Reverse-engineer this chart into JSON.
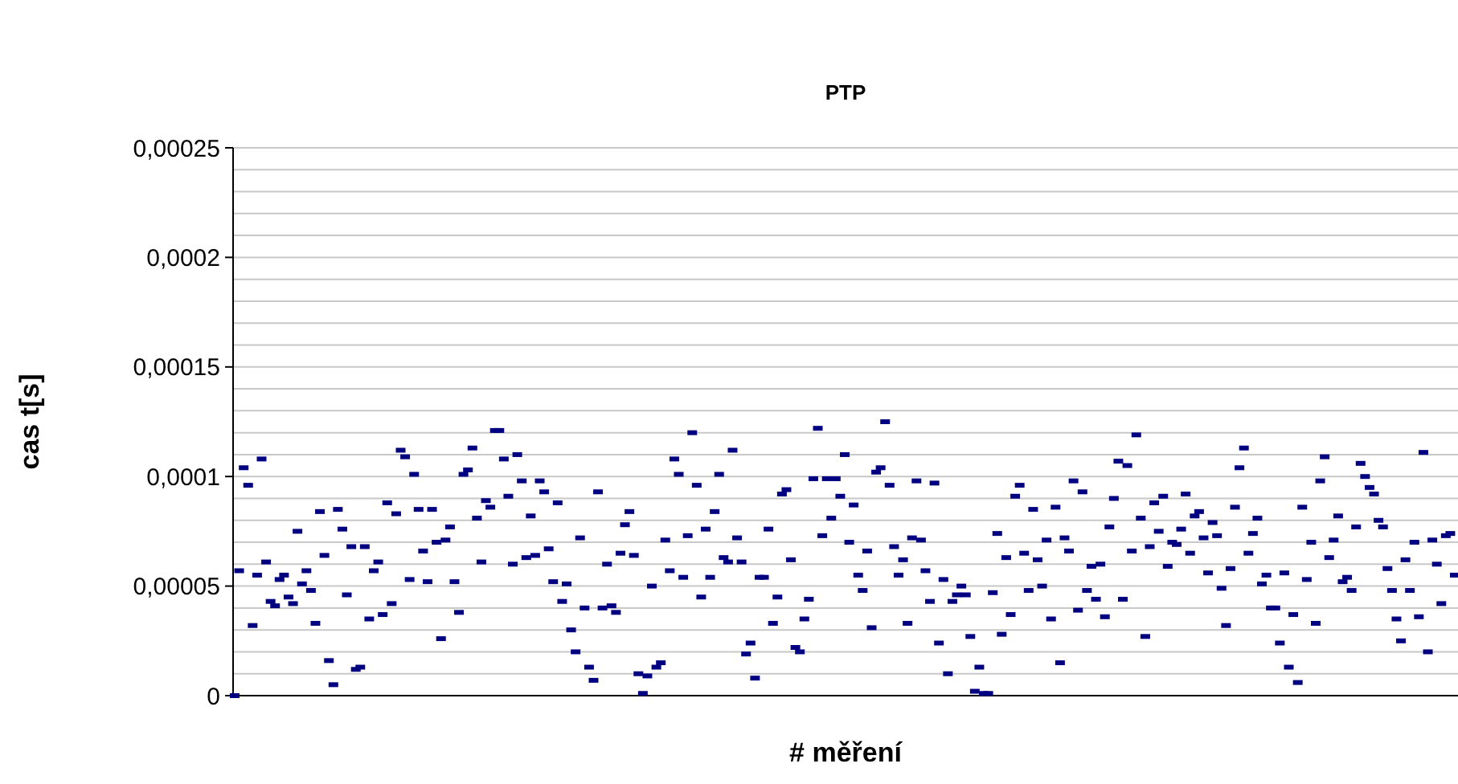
{
  "chart_data": {
    "type": "scatter",
    "title": "PTP",
    "xlabel": "# měření",
    "ylabel": "cas t[s]",
    "categories": [
      null,
      null,
      null,
      null,
      null,
      null,
      null,
      null,
      null,
      null,
      null,
      null,
      null,
      null,
      null,
      null,
      null,
      null,
      null,
      null,
      null,
      null,
      null,
      null,
      null,
      null,
      null,
      null,
      null,
      null,
      null,
      null,
      null,
      null,
      null,
      null,
      null,
      null,
      null,
      null,
      null,
      null,
      null,
      null,
      null,
      null,
      null,
      null,
      null,
      null,
      null,
      null,
      null,
      null,
      null,
      null,
      null,
      null,
      null,
      null,
      null,
      null,
      null,
      null,
      null,
      null,
      null,
      null,
      null,
      null,
      null,
      null,
      null,
      null,
      null,
      null,
      null,
      null,
      null,
      null,
      null,
      null,
      null,
      null,
      null,
      null,
      null,
      null,
      null,
      null,
      null,
      null,
      null,
      null,
      null,
      null,
      null,
      null,
      null,
      null,
      null,
      null,
      null,
      null,
      null,
      null,
      null,
      null,
      null,
      null,
      null,
      null,
      null,
      null,
      null,
      null,
      null,
      null,
      null,
      null,
      null,
      null,
      null,
      null,
      null,
      null,
      null,
      null,
      null,
      null,
      null,
      null,
      null,
      null,
      null,
      null,
      null,
      null,
      null,
      null,
      null,
      null,
      null,
      null,
      null,
      null,
      null,
      null,
      null,
      null,
      null,
      null,
      null,
      null,
      null,
      null,
      null,
      null,
      null,
      null,
      null,
      null,
      null,
      null,
      null,
      null,
      null,
      null,
      null,
      null,
      null,
      null,
      null,
      null,
      null,
      null,
      null,
      null,
      null,
      null,
      null,
      null,
      null,
      null,
      null,
      null,
      null,
      null,
      null,
      null,
      null,
      null,
      null,
      null,
      null,
      null,
      null,
      null,
      null,
      null,
      null,
      null,
      null,
      null,
      null,
      null,
      null,
      null,
      null,
      null,
      null,
      null,
      null,
      null,
      null,
      null,
      null,
      null,
      null,
      null,
      null,
      null,
      null,
      null,
      null,
      null,
      null,
      null,
      null,
      null,
      null,
      null,
      null,
      null,
      null,
      null,
      null,
      null,
      null,
      null,
      null,
      null,
      null,
      null,
      null,
      null,
      null,
      null,
      null,
      null,
      null,
      null,
      null,
      null,
      null,
      null,
      null,
      null,
      null,
      null,
      null,
      null,
      null,
      null,
      null,
      null,
      null,
      null,
      null,
      null,
      null,
      null,
      null
    ],
    "series": [
      {
        "color": "#000080",
        "values": [
          0,
          5.7e-05,
          0.000104,
          9.6e-05,
          3.2e-05,
          5.5e-05,
          0.000108,
          6.1e-05,
          4.3e-05,
          4.1e-05,
          5.3e-05,
          5.5e-05,
          4.5e-05,
          4.2e-05,
          7.5e-05,
          5.1e-05,
          5.7e-05,
          4.8e-05,
          3.3e-05,
          8.4e-05,
          6.4e-05,
          1.6e-05,
          5e-06,
          8.5e-05,
          7.6e-05,
          4.6e-05,
          6.8e-05,
          1.2e-05,
          1.3e-05,
          6.8e-05,
          3.5e-05,
          5.7e-05,
          6.1e-05,
          3.7e-05,
          8.8e-05,
          4.2e-05,
          8.3e-05,
          0.000112,
          0.000109,
          5.3e-05,
          0.000101,
          8.5e-05,
          6.6e-05,
          5.2e-05,
          8.5e-05,
          7e-05,
          2.6e-05,
          7.1e-05,
          7.7e-05,
          5.2e-05,
          3.8e-05,
          0.000101,
          0.000103,
          0.000113,
          8.1e-05,
          6.1e-05,
          8.9e-05,
          8.6e-05,
          0.000121,
          0.000121,
          0.000108,
          9.1e-05,
          6e-05,
          0.00011,
          9.8e-05,
          6.3e-05,
          8.2e-05,
          6.4e-05,
          9.8e-05,
          9.3e-05,
          6.7e-05,
          5.2e-05,
          8.8e-05,
          4.3e-05,
          5.1e-05,
          3e-05,
          2e-05,
          7.2e-05,
          4e-05,
          1.3e-05,
          7e-06,
          9.3e-05,
          4e-05,
          6e-05,
          4.1e-05,
          3.8e-05,
          6.5e-05,
          7.8e-05,
          8.4e-05,
          6.4e-05,
          1e-05,
          1e-06,
          9e-06,
          5e-05,
          1.3e-05,
          1.5e-05,
          7.1e-05,
          5.7e-05,
          0.000108,
          0.000101,
          5.4e-05,
          7.3e-05,
          0.00012,
          9.6e-05,
          4.5e-05,
          7.6e-05,
          5.4e-05,
          8.4e-05,
          0.000101,
          6.3e-05,
          6.1e-05,
          0.000112,
          7.2e-05,
          6.1e-05,
          1.9e-05,
          2.4e-05,
          8e-06,
          5.4e-05,
          5.4e-05,
          7.6e-05,
          3.3e-05,
          4.5e-05,
          9.2e-05,
          9.4e-05,
          6.2e-05,
          2.2e-05,
          2e-05,
          3.5e-05,
          4.4e-05,
          9.9e-05,
          0.000122,
          7.3e-05,
          9.9e-05,
          8.1e-05,
          9.9e-05,
          9.1e-05,
          0.00011,
          7e-05,
          8.7e-05,
          5.5e-05,
          4.8e-05,
          6.6e-05,
          3.1e-05,
          0.000102,
          0.000104,
          0.000125,
          9.6e-05,
          6.8e-05,
          5.5e-05,
          6.2e-05,
          3.3e-05,
          7.2e-05,
          9.8e-05,
          7.1e-05,
          5.7e-05,
          4.3e-05,
          9.7e-05,
          2.4e-05,
          5.3e-05,
          1e-05,
          4.3e-05,
          4.6e-05,
          5e-05,
          4.6e-05,
          2.7e-05,
          2e-06,
          1.3e-05,
          1e-06,
          1e-06,
          4.7e-05,
          7.4e-05,
          2.8e-05,
          6.3e-05,
          3.7e-05,
          9.1e-05,
          9.6e-05,
          6.5e-05,
          4.8e-05,
          8.5e-05,
          6.2e-05,
          5e-05,
          7.1e-05,
          3.5e-05,
          8.6e-05,
          1.5e-05,
          7.2e-05,
          6.6e-05,
          9.8e-05,
          3.9e-05,
          9.3e-05,
          4.8e-05,
          5.9e-05,
          4.4e-05,
          6e-05,
          3.6e-05,
          7.7e-05,
          9e-05,
          0.000107,
          4.4e-05,
          0.000105,
          6.6e-05,
          0.000119,
          8.1e-05,
          2.7e-05,
          6.8e-05,
          8.8e-05,
          7.5e-05,
          9.1e-05,
          5.9e-05,
          7e-05,
          6.9e-05,
          7.6e-05,
          9.2e-05,
          6.5e-05,
          8.2e-05,
          8.4e-05,
          7.2e-05,
          5.6e-05,
          7.9e-05,
          7.3e-05,
          4.9e-05,
          3.2e-05,
          5.8e-05,
          8.6e-05,
          0.000104,
          0.000113,
          6.5e-05,
          7.4e-05,
          8.1e-05,
          5.1e-05,
          5.5e-05,
          4e-05,
          4e-05,
          2.4e-05,
          5.6e-05,
          1.3e-05,
          3.7e-05,
          6e-06,
          8.6e-05,
          5.3e-05,
          7e-05,
          3.3e-05,
          9.8e-05,
          0.000109,
          6.3e-05,
          7.1e-05,
          8.2e-05,
          5.2e-05,
          5.4e-05,
          4.8e-05,
          7.7e-05,
          0.000106,
          0.0001,
          9.5e-05,
          9.2e-05,
          8e-05,
          7.7e-05,
          5.8e-05,
          4.8e-05,
          3.5e-05,
          2.5e-05,
          6.2e-05,
          4.8e-05,
          7e-05,
          3.6e-05,
          0.000111,
          2e-05,
          7.1e-05,
          6e-05,
          4.2e-05,
          7.3e-05,
          7.4e-05,
          5.5e-05
        ]
      }
    ],
    "ylim": [
      0,
      0.00025
    ],
    "yticks": [
      0,
      {
        "value": 1e-05,
        "label": null
      },
      {
        "value": 2e-05,
        "label": null
      },
      {
        "value": 3e-05,
        "label": null
      },
      {
        "value": 4e-05,
        "label": null
      },
      {
        "value": 5e-05,
        "label": "0,00005"
      },
      {
        "value": 6e-05,
        "label": null
      },
      {
        "value": 7e-05,
        "label": null
      },
      {
        "value": 8e-05,
        "label": null
      },
      {
        "value": 9e-05,
        "label": null
      },
      {
        "value": 0.0001,
        "label": "0,0001"
      },
      {
        "value": 0.00011,
        "label": null
      },
      {
        "value": 0.00012,
        "label": null
      },
      {
        "value": 0.00013,
        "label": null
      },
      {
        "value": 0.00014,
        "label": null
      },
      {
        "value": 0.00015,
        "label": "0,00015"
      },
      {
        "value": 0.00016,
        "label": null
      },
      {
        "value": 0.00017,
        "label": null
      },
      {
        "value": 0.00018,
        "label": null
      },
      {
        "value": 0.00019,
        "label": null
      },
      {
        "value": 0.0002,
        "label": "0,0002"
      },
      {
        "value": 0.00021,
        "label": null
      },
      {
        "value": 0.00022,
        "label": null
      },
      {
        "value": 0.00023,
        "label": null
      },
      {
        "value": 0.00024,
        "label": null
      },
      {
        "value": 0.00025,
        "label": "0,00025"
      }
    ],
    "grid": true,
    "marker": "square"
  }
}
